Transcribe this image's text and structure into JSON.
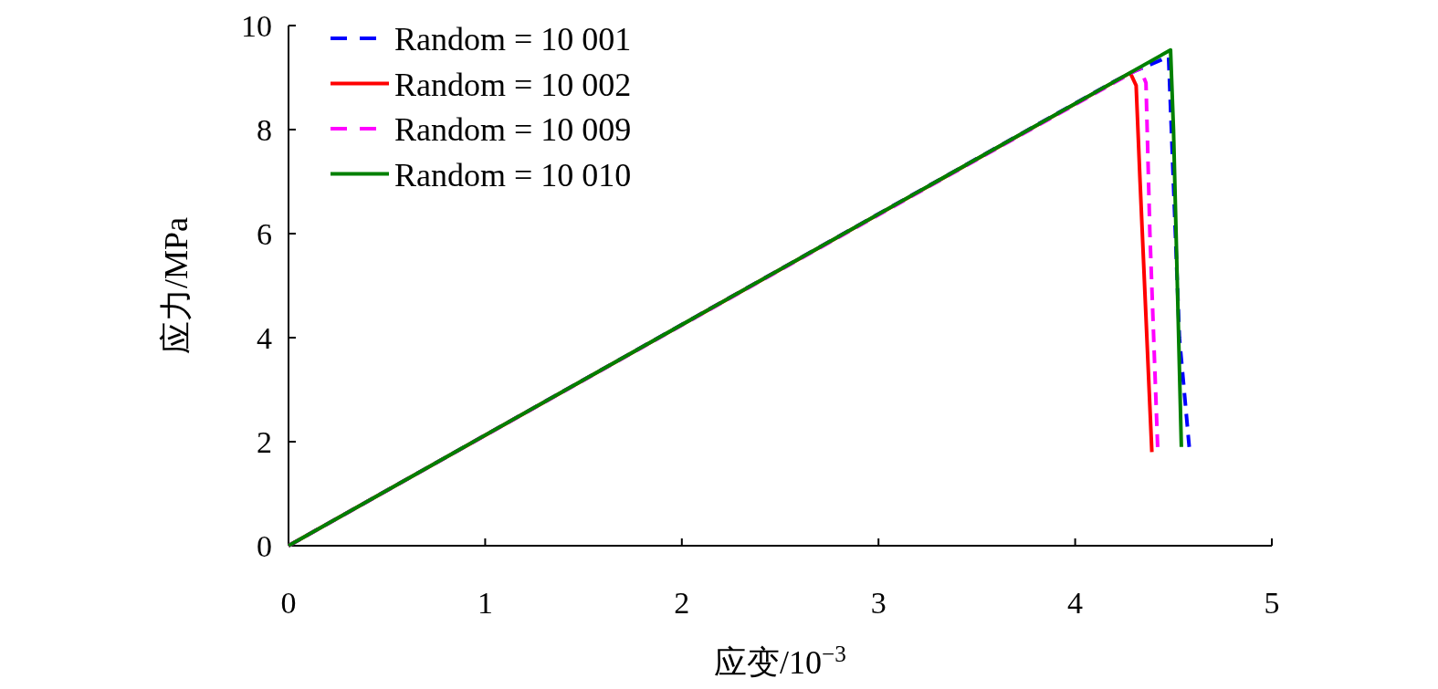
{
  "chart_data": {
    "type": "line",
    "xlabel": "应变/10$^{−3}$",
    "ylabel": "应力/MPa",
    "xlim": [
      0,
      5
    ],
    "ylim": [
      0,
      10
    ],
    "xticks": [
      0,
      1,
      2,
      3,
      4,
      5
    ],
    "yticks": [
      0,
      2,
      4,
      6,
      8,
      10
    ],
    "legend": "top left",
    "grid": false,
    "marker": "none",
    "series": [
      {
        "name": "Random = 10 001",
        "color": "#0000ff",
        "line_style": "dashed",
        "x": [
          0,
          4.2,
          4.3,
          4.475,
          4.53,
          4.58
        ],
        "values": [
          0,
          8.93,
          9.12,
          9.4,
          4.0,
          1.9
        ]
      },
      {
        "name": "Random = 10 002",
        "color": "#ff0000",
        "line_style": "solid",
        "x": [
          0,
          4.28,
          4.31,
          4.33,
          4.39
        ],
        "values": [
          0,
          9.09,
          8.85,
          7.0,
          1.8
        ]
      },
      {
        "name": "Random = 10 009",
        "color": "#ff00ff",
        "line_style": "dashed",
        "x": [
          0,
          4.33,
          4.36,
          4.38,
          4.42
        ],
        "values": [
          0,
          9.18,
          8.9,
          6.0,
          1.84
        ]
      },
      {
        "name": "Random = 10 010",
        "color": "#008000",
        "line_style": "solid",
        "x": [
          0,
          4.485,
          4.5,
          4.54
        ],
        "values": [
          0,
          9.53,
          8.0,
          1.9
        ]
      }
    ]
  }
}
